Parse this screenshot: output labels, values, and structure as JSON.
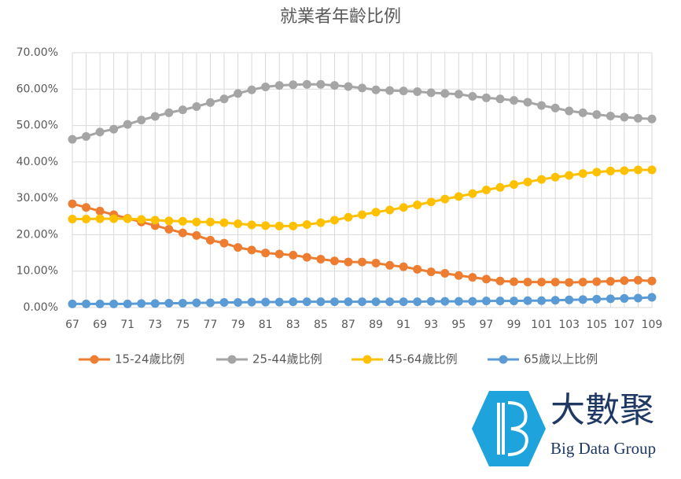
{
  "chart_data": {
    "type": "line",
    "title": "就業者年齡比例",
    "x": [
      67,
      68,
      69,
      70,
      71,
      72,
      73,
      74,
      75,
      76,
      77,
      78,
      79,
      80,
      81,
      82,
      83,
      84,
      85,
      86,
      87,
      88,
      89,
      90,
      91,
      92,
      93,
      94,
      95,
      96,
      97,
      98,
      99,
      100,
      101,
      102,
      103,
      104,
      105,
      106,
      107,
      108,
      109
    ],
    "xlim": [
      67,
      109
    ],
    "xticks": [
      67,
      69,
      71,
      73,
      75,
      77,
      79,
      81,
      83,
      85,
      87,
      89,
      91,
      93,
      95,
      97,
      99,
      101,
      103,
      105,
      107,
      109
    ],
    "ylim": [
      0,
      70
    ],
    "yticks": [
      {
        "value": 0,
        "label": "0.00%"
      },
      {
        "value": 10,
        "label": "10.00%"
      },
      {
        "value": 20,
        "label": "20.00%"
      },
      {
        "value": 30,
        "label": "30.00%"
      },
      {
        "value": 40,
        "label": "40.00%"
      },
      {
        "value": 50,
        "label": "50.00%"
      },
      {
        "value": 60,
        "label": "60.00%"
      },
      {
        "value": 70,
        "label": "70.00%"
      }
    ],
    "grid": true,
    "series": [
      {
        "name": "15-24歲比例",
        "color": "#ED7D31",
        "values": [
          28.5,
          27.5,
          26.5,
          25.5,
          24.5,
          23.5,
          22.5,
          21.5,
          20.5,
          19.8,
          18.5,
          17.7,
          16.5,
          15.8,
          15.0,
          14.7,
          14.4,
          13.8,
          13.3,
          12.8,
          12.5,
          12.5,
          12.2,
          11.6,
          11.2,
          10.5,
          9.8,
          9.4,
          8.8,
          8.3,
          7.8,
          7.3,
          7.1,
          7.0,
          7.0,
          7.0,
          6.9,
          7.0,
          7.1,
          7.2,
          7.4,
          7.5,
          7.3
        ]
      },
      {
        "name": "25-44歲比例",
        "color": "#A5A5A5",
        "values": [
          46.2,
          47.0,
          48.2,
          49.0,
          50.3,
          51.5,
          52.5,
          53.5,
          54.3,
          55.2,
          56.3,
          57.3,
          58.8,
          59.8,
          60.6,
          61.0,
          61.2,
          61.3,
          61.3,
          61.0,
          60.7,
          60.3,
          59.8,
          59.6,
          59.5,
          59.3,
          59.0,
          58.8,
          58.6,
          58.0,
          57.6,
          57.3,
          56.9,
          56.4,
          55.5,
          54.8,
          54.0,
          53.5,
          53.0,
          52.6,
          52.3,
          52.0,
          51.8
        ]
      },
      {
        "name": "45-64歲比例",
        "color": "#FFC000",
        "values": [
          24.3,
          24.3,
          24.4,
          24.4,
          24.4,
          24.2,
          24.0,
          23.8,
          23.7,
          23.5,
          23.5,
          23.3,
          23.0,
          22.7,
          22.5,
          22.4,
          22.4,
          22.8,
          23.3,
          24.0,
          24.8,
          25.5,
          26.2,
          26.8,
          27.5,
          28.2,
          29.0,
          29.8,
          30.5,
          31.3,
          32.3,
          33.0,
          33.8,
          34.5,
          35.2,
          35.8,
          36.3,
          36.8,
          37.2,
          37.5,
          37.6,
          37.8,
          37.8
        ]
      },
      {
        "name": "65歲以上比例",
        "color": "#5B9BD5",
        "values": [
          1.0,
          1.0,
          1.0,
          1.0,
          1.0,
          1.1,
          1.1,
          1.2,
          1.2,
          1.3,
          1.3,
          1.4,
          1.4,
          1.5,
          1.5,
          1.5,
          1.6,
          1.6,
          1.6,
          1.6,
          1.6,
          1.6,
          1.6,
          1.6,
          1.6,
          1.6,
          1.7,
          1.7,
          1.7,
          1.7,
          1.8,
          1.8,
          1.8,
          1.9,
          1.9,
          2.0,
          2.1,
          2.2,
          2.3,
          2.4,
          2.5,
          2.6,
          2.8
        ]
      }
    ]
  },
  "logo": {
    "name": "大數聚",
    "subtitle": "Big Data Group"
  }
}
